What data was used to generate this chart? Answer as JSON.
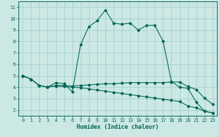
{
  "xlabel": "Humidex (Indice chaleur)",
  "background_color": "#cce8e4",
  "grid_color": "#99cccc",
  "line_color": "#006655",
  "spine_color": "#006655",
  "xlim": [
    -0.5,
    23.5
  ],
  "ylim": [
    1.5,
    11.5
  ],
  "xticks": [
    0,
    1,
    2,
    3,
    4,
    5,
    6,
    7,
    8,
    9,
    10,
    11,
    12,
    13,
    14,
    15,
    16,
    17,
    18,
    19,
    20,
    21,
    22,
    23
  ],
  "yticks": [
    2,
    3,
    4,
    5,
    6,
    7,
    8,
    9,
    10,
    11
  ],
  "series1_x": [
    0,
    1,
    2,
    3,
    4,
    5,
    6,
    7,
    8,
    9,
    10,
    11,
    12,
    13,
    14,
    15,
    16,
    17,
    18,
    19,
    20,
    21,
    22,
    23
  ],
  "series1_y": [
    5.0,
    4.7,
    4.15,
    4.0,
    4.4,
    4.3,
    3.6,
    7.7,
    9.3,
    9.8,
    10.75,
    9.6,
    9.5,
    9.6,
    9.0,
    9.4,
    9.4,
    8.0,
    4.5,
    4.0,
    3.9,
    2.7,
    1.9,
    1.75
  ],
  "series2_x": [
    0,
    1,
    2,
    3,
    4,
    5,
    6,
    7,
    8,
    9,
    10,
    11,
    12,
    13,
    14,
    15,
    16,
    17,
    18,
    19,
    20,
    21,
    22,
    23
  ],
  "series2_y": [
    5.0,
    4.7,
    4.15,
    4.0,
    4.15,
    4.15,
    4.1,
    4.15,
    4.2,
    4.25,
    4.3,
    4.3,
    4.35,
    4.4,
    4.4,
    4.4,
    4.4,
    4.4,
    4.45,
    4.45,
    4.05,
    3.8,
    3.05,
    2.5
  ],
  "series3_x": [
    0,
    1,
    2,
    3,
    4,
    5,
    6,
    7,
    8,
    9,
    10,
    11,
    12,
    13,
    14,
    15,
    16,
    17,
    18,
    19,
    20,
    21,
    22,
    23
  ],
  "series3_y": [
    5.0,
    4.7,
    4.15,
    4.0,
    4.1,
    4.05,
    4.0,
    3.95,
    3.85,
    3.75,
    3.65,
    3.55,
    3.45,
    3.35,
    3.25,
    3.15,
    3.05,
    2.95,
    2.85,
    2.75,
    2.35,
    2.2,
    1.9,
    1.75
  ],
  "tick_fontsize": 5.0,
  "label_fontsize": 6.0,
  "linewidth": 0.8,
  "markersize": 1.8
}
